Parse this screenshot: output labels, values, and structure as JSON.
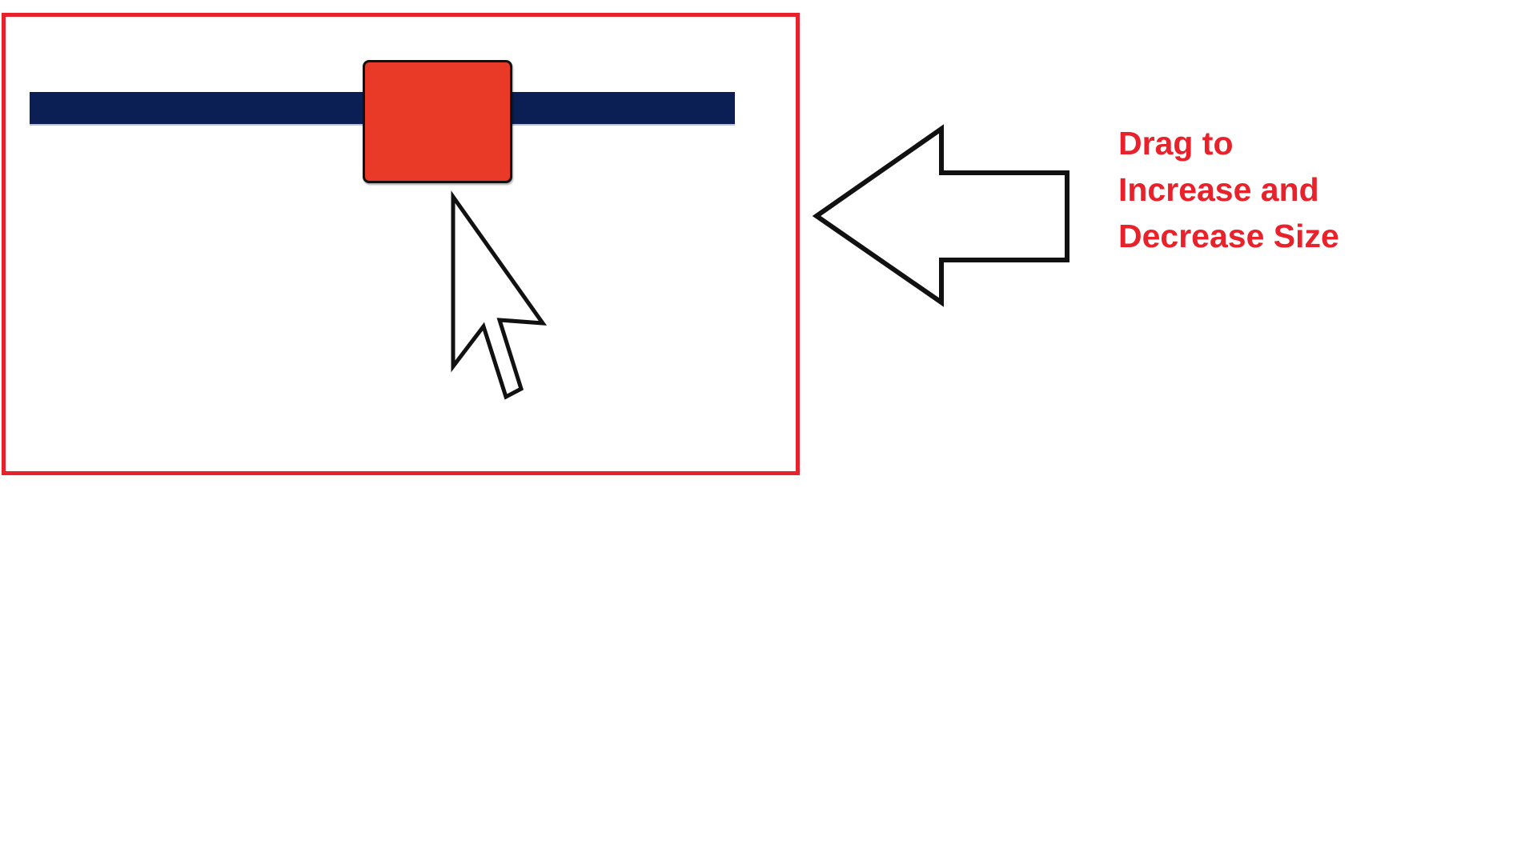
{
  "instruction": {
    "text": "Drag to Increase and Decrease Size"
  },
  "slider": {
    "value_percent": 49
  },
  "icons": {
    "cursor": "mouse-pointer-icon",
    "pointer_arrow": "left-arrow-icon"
  },
  "colors": {
    "frame_border": "#e8212b",
    "track": "#0c1f55",
    "thumb": "#e83a27",
    "instruction_text": "#e8212b",
    "outline": "#111111"
  }
}
